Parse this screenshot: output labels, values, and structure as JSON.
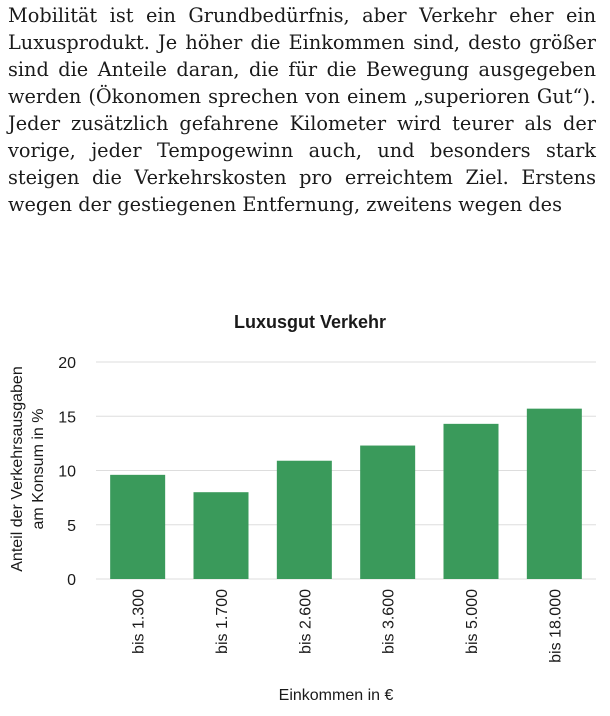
{
  "document": {
    "paragraph": "Mobilität ist ein Grundbedürfnis, aber Verkehr eher ein Luxusprodukt. Je höher die Einkommen sind, desto größer sind die Anteile daran, die für die Bewegung ausgegeben werden (Ökonomen sprechen von einem „superioren Gut“). Jeder zusätzlich gefahrene Kilometer wird teurer als der vorige, jeder Tempogewinn auch, und besonders stark steigen die Verkehrskosten pro erreichtem Ziel. Erstens wegen der gestiegenen Entfernung, zweitens wegen des"
  },
  "chart_data": {
    "type": "bar",
    "title": "Luxusgut Verkehr",
    "xlabel": "Einkommen in €",
    "ylabel_line1": "Anteil der Verkehrsausgaben",
    "ylabel_line2": "am Konsum in %",
    "categories": [
      "bis 1.300",
      "bis 1.700",
      "bis 2.600",
      "bis 3.600",
      "bis 5.000",
      "bis 18.000"
    ],
    "values": [
      9.6,
      8.0,
      10.9,
      12.3,
      14.3,
      15.7
    ],
    "ylim": [
      0,
      20
    ],
    "yticks": [
      "0",
      "5",
      "10",
      "15",
      "20"
    ],
    "grid": true,
    "bar_color": "#3a9a5b",
    "grid_color": "#dddddd"
  }
}
